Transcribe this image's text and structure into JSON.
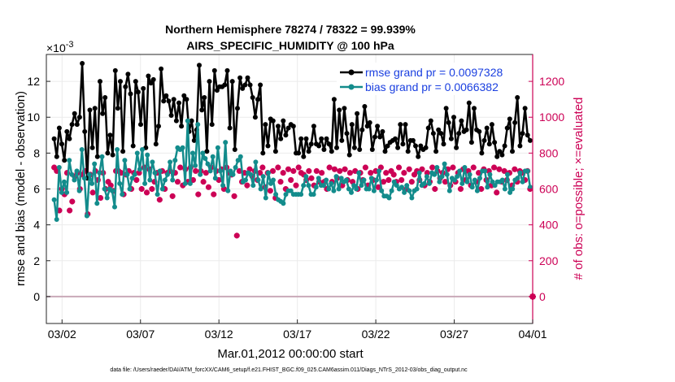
{
  "chart_data": {
    "type": "line",
    "title_line1": "Northern Hemisphere 78274 / 78322 = 99.939%",
    "title_line2": "AIRS_SPECIFIC_HUMIDITY @ 100 hPa",
    "left_axis": {
      "label": "rmse and bias (model - observation)",
      "exponent_base": "×10",
      "exponent_power": "-3",
      "ylim": [
        -1.5,
        13.5
      ],
      "ticks": [
        0,
        2,
        4,
        6,
        8,
        10,
        12
      ],
      "tick_labels": [
        "0",
        "2",
        "4",
        "6",
        "8",
        "10",
        "12"
      ]
    },
    "right_axis": {
      "label": "# of obs: o=possible; ×=evaluated",
      "ylim": [
        -150,
        1350
      ],
      "ticks": [
        0,
        200,
        400,
        600,
        800,
        1000,
        1200
      ],
      "tick_labels": [
        "0",
        "200",
        "400",
        "600",
        "800",
        "1000",
        "1200"
      ],
      "color": "#cc0055"
    },
    "x_axis": {
      "label": "Mar.01,2012 00:00:00 start",
      "xlim": [
        0.5,
        31.5
      ],
      "ticks": [
        1.5,
        6.5,
        11.5,
        16.5,
        21.5,
        26.5,
        31.5
      ],
      "tick_labels": [
        "03/02",
        "03/07",
        "03/12",
        "03/17",
        "03/22",
        "03/27",
        "04/01"
      ]
    },
    "legend": {
      "position": "top-right",
      "entries": [
        {
          "label": "rmse grand pr = 0.0097328",
          "color": "#000000"
        },
        {
          "label": "bias grand pr = 0.0066382",
          "color": "#138c8c"
        }
      ]
    },
    "series": [
      {
        "name": "rmse",
        "color": "#000000",
        "values": [
          8.8,
          7.8,
          9.4,
          8.5,
          7.6,
          9.2,
          8.8,
          9.6,
          10.2,
          9.6,
          10.0,
          13.0,
          9.2,
          6.6,
          10.4,
          8.3,
          10.5,
          7.8,
          12.0,
          10.2,
          11.1,
          8.0,
          9.0,
          7.9,
          12.6,
          10.5,
          12.0,
          8.1,
          11.7,
          12.4,
          11.3,
          8.4,
          12.0,
          11.4,
          9.6,
          11.6,
          8.3,
          12.3,
          11.9,
          12.1,
          8.5,
          9.5,
          12.7,
          10.9,
          11.2,
          10.9,
          10.1,
          11.0,
          9.8,
          10.8,
          9.5,
          11.2,
          11.0,
          9.2,
          9.8,
          8.7,
          9.3,
          12.9,
          10.4,
          11.1,
          8.1,
          12.0,
          9.6,
          12.6,
          11.5,
          11.7,
          11.7,
          11.8,
          12.6,
          9.4,
          12.0,
          8.2,
          10.5,
          12.2,
          11.6,
          11.8,
          12.2,
          11.8,
          11.1,
          10.0,
          11.0,
          11.8,
          8.0,
          9.6,
          8.4,
          9.9,
          9.8,
          8.1,
          9.5,
          8.8,
          9.8,
          9.0,
          9.4,
          9.6,
          9.5,
          8.0,
          8.0,
          8.8,
          7.8,
          8.8,
          8.1,
          8.5,
          9.5,
          8.5,
          8.4,
          8.8,
          8.2,
          8.8,
          8.5,
          8.1,
          11.0,
          8.3,
          10.4,
          8.7,
          10.5,
          9.1,
          7.9,
          9.6,
          8.3,
          10.2,
          8.2,
          9.3,
          10.6,
          9.5,
          9.7,
          8.2,
          8.9,
          9.5,
          8.9,
          9.2,
          8.1,
          8.4,
          8.6,
          8.7,
          8.8,
          8.3,
          9.6,
          8.5,
          9.6,
          8.1,
          8.7,
          8.7,
          8.4,
          7.8,
          8.4,
          8.2,
          8.3,
          9.4,
          9.8,
          9.1,
          8.1,
          9.3,
          9.1,
          8.5,
          10.5,
          9.7,
          8.8,
          10.0,
          8.3,
          9.1,
          9.8,
          9.2,
          9.3,
          10.8,
          8.6,
          10.5,
          9.3,
          9.2,
          8.0,
          8.7,
          9.4,
          8.5,
          9.6,
          8.6,
          7.8,
          8.1,
          7.9,
          8.4,
          9.4,
          9.9,
          8.1,
          9.7,
          11.1,
          8.4,
          9.1,
          10.5,
          9.0,
          8.7
        ]
      },
      {
        "name": "bias",
        "color": "#138c8c",
        "values": [
          5.4,
          4.3,
          7.2,
          5.8,
          6.4,
          5.8,
          7.6,
          6.8,
          6.5,
          7.0,
          5.9,
          8.2,
          6.6,
          4.5,
          6.8,
          6.3,
          7.4,
          5.2,
          6.9,
          7.8,
          6.0,
          5.5,
          6.0,
          5.9,
          5.0,
          8.2,
          6.3,
          5.7,
          7.6,
          6.8,
          6.0,
          6.6,
          6.8,
          8.0,
          7.1,
          8.2,
          6.3,
          7.9,
          6.5,
          7.5,
          6.9,
          5.7,
          7.0,
          6.0,
          6.5,
          6.8,
          7.5,
          6.5,
          7.6,
          8.3,
          8.2,
          8.3,
          6.3,
          9.8,
          6.3,
          8.0,
          7.3,
          9.6,
          6.8,
          8.0,
          7.7,
          7.4,
          7.0,
          7.8,
          6.6,
          8.3,
          7.0,
          6.2,
          8.6,
          5.9,
          7.0,
          6.8,
          7.2,
          7.6,
          7.8,
          6.4,
          6.5,
          6.9,
          6.8,
          6.2,
          7.5,
          6.5,
          6.0,
          6.7,
          5.5,
          6.9,
          6.3,
          6.5,
          5.7,
          5.4,
          5.3,
          5.2,
          5.7,
          5.9,
          5.9,
          5.7,
          5.7,
          5.7,
          5.7,
          6.2,
          6.7,
          6.2,
          5.7,
          5.7,
          6.1,
          6.6,
          6.2,
          6.2,
          6.5,
          6.0,
          6.3,
          5.9,
          6.7,
          6.0,
          6.6,
          6.4,
          6.5,
          6.0,
          5.8,
          6.2,
          6.0,
          6.9,
          6.2,
          6.5,
          6.0,
          6.0,
          6.6,
          5.9,
          6.5,
          7.0,
          5.9,
          5.6,
          5.6,
          5.5,
          5.9,
          6.4,
          6.2,
          6.0,
          6.1,
          5.8,
          6.2,
          5.9,
          5.5,
          5.9,
          6.0,
          6.9,
          6.2,
          6.3,
          6.7,
          6.3,
          6.9,
          6.8,
          7.2,
          6.4,
          6.7,
          7.4,
          6.8,
          5.9,
          6.6,
          6.5,
          6.7,
          7.0,
          6.3,
          7.2,
          6.4,
          6.8,
          6.1,
          6.5,
          5.9,
          6.6,
          7.0,
          7.0,
          6.1,
          6.8,
          6.4,
          6.2,
          6.4,
          6.4,
          6.5,
          6.0,
          6.8,
          5.8,
          6.0,
          6.5,
          6.6,
          6.9,
          6.4,
          7.0,
          7.0,
          6.1
        ]
      },
      {
        "name": "# of obs evaluated",
        "axis": "right",
        "color": "#cc0055",
        "marker": "cross",
        "values": [
          720,
          700,
          480,
          600,
          570,
          690,
          480,
          530,
          670,
          690,
          600,
          680,
          700,
          460,
          680,
          580,
          700,
          650,
          550,
          690,
          600,
          640,
          620,
          590,
          700,
          700,
          690,
          570,
          680,
          700,
          600,
          690,
          650,
          690,
          600,
          720,
          580,
          710,
          600,
          640,
          690,
          540,
          700,
          600,
          690,
          700,
          560,
          690,
          640,
          720,
          620,
          710,
          640,
          720,
          650,
          700,
          570,
          700,
          640,
          690,
          610,
          720,
          570,
          700,
          650,
          710,
          600,
          720,
          690,
          680,
          560,
          340,
          700,
          640,
          690,
          620,
          710,
          670,
          700,
          650,
          690,
          720,
          610,
          690,
          590,
          700,
          550,
          720,
          640,
          690,
          600,
          710,
          650,
          700,
          620,
          720,
          690,
          680,
          650,
          700,
          660,
          620,
          700,
          640,
          690,
          640,
          600,
          720,
          640,
          710,
          660,
          700,
          620,
          710,
          650,
          690,
          640,
          700,
          600,
          690,
          650,
          720,
          620,
          690,
          650,
          700,
          610,
          720,
          640,
          690,
          650,
          700,
          680,
          640,
          720,
          650,
          690,
          600,
          710,
          640,
          680,
          700,
          650,
          710,
          620,
          690,
          640,
          720,
          600,
          700,
          660,
          690,
          640,
          710,
          620,
          720,
          640,
          690,
          600,
          710,
          650,
          700,
          620,
          720,
          640,
          690,
          600,
          710,
          650,
          700,
          620,
          720,
          580,
          710,
          640,
          700,
          650,
          690,
          620,
          710,
          640,
          700,
          690,
          650,
          700,
          600
        ]
      }
    ],
    "zero_count_marker": {
      "x": 31.5,
      "value": 0
    }
  },
  "footer": "data file: /Users/raeder/DAI/ATM_forcXX/CAM6_setup/f.e21.FHIST_BGC.f09_025.CAM6assim.011/Diags_NTrS_2012-03/obs_diag_output.nc"
}
